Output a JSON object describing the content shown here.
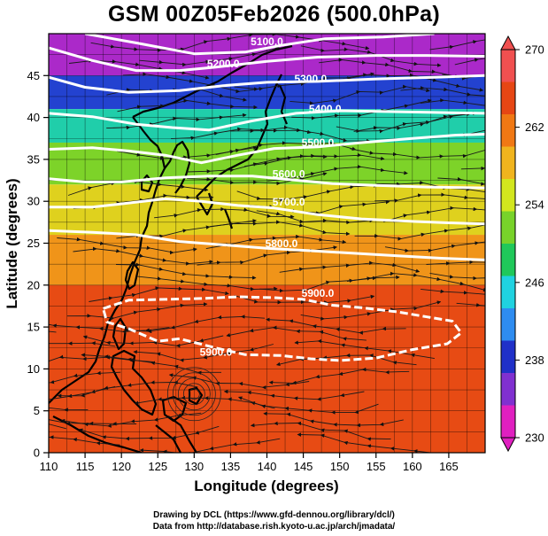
{
  "chart_data": {
    "type": "heatmap",
    "title": "GSM 00Z05Feb2026 (500.0hPa)",
    "xlabel": "Longitude (degrees)",
    "ylabel": "Latitude  (degrees)",
    "xlim": [
      110,
      170
    ],
    "ylim": [
      0,
      50
    ],
    "x_ticks": [
      "110",
      "115",
      "120",
      "125",
      "130",
      "135",
      "140",
      "145",
      "150",
      "155",
      "160",
      "165"
    ],
    "y_ticks": [
      "0",
      "5",
      "10",
      "15",
      "20",
      "25",
      "30",
      "35",
      "40",
      "45"
    ],
    "grid": true,
    "field": "temperature (K)",
    "field_bands": [
      {
        "lat_bottom": 45,
        "lat_top": 50,
        "value": 232
      },
      {
        "lat_bottom": 41,
        "lat_top": 45,
        "value": 238
      },
      {
        "lat_bottom": 37,
        "lat_top": 41,
        "value": 246
      },
      {
        "lat_bottom": 32,
        "lat_top": 37,
        "value": 252
      },
      {
        "lat_bottom": 26,
        "lat_top": 32,
        "value": 257
      },
      {
        "lat_bottom": 20,
        "lat_top": 26,
        "value": 261
      },
      {
        "lat_bottom": 0,
        "lat_top": 20,
        "value": 266
      }
    ],
    "colorbar": {
      "min": 230,
      "max": 270,
      "ticks": [
        "230",
        "238",
        "246",
        "254",
        "262",
        "270"
      ],
      "colors": [
        "#e020c0",
        "#8030d0",
        "#2030c8",
        "#2e8cf0",
        "#20d2e0",
        "#20c85a",
        "#78d22a",
        "#d2e61e",
        "#f0b41e",
        "#f07814",
        "#e64614",
        "#f05050"
      ]
    },
    "contours": {
      "variable": "geopotential height (m)",
      "series": [
        {
          "name": "5100.0",
          "label": "5100.0",
          "label_lon": 140,
          "label_lat": 48.6,
          "points": [
            [
              115.0,
              50.0
            ],
            [
              122.0,
              48.9
            ],
            [
              130.0,
              47.6
            ],
            [
              137.0,
              47.8
            ],
            [
              142.0,
              48.6
            ],
            [
              148.0,
              49.4
            ],
            [
              156.0,
              49.6
            ],
            [
              163.0,
              50.0
            ]
          ]
        },
        {
          "name": "5200.0",
          "label": "5200.0",
          "label_lon": 134,
          "label_lat": 46.0,
          "points": [
            [
              110.0,
              48.3
            ],
            [
              116.0,
              46.8
            ],
            [
              122.0,
              45.6
            ],
            [
              128.0,
              45.6
            ],
            [
              133.0,
              46.0
            ],
            [
              140.0,
              46.7
            ],
            [
              147.0,
              47.2
            ],
            [
              155.0,
              47.4
            ],
            [
              162.0,
              47.4
            ],
            [
              170.0,
              47.3
            ]
          ]
        },
        {
          "name": "5300.0",
          "label": "5300.0",
          "label_lon": 146,
          "label_lat": 44.2,
          "points": [
            [
              110.0,
              44.8
            ],
            [
              115.0,
              43.6
            ],
            [
              121.0,
              43.0
            ],
            [
              128.0,
              43.2
            ],
            [
              134.0,
              43.8
            ],
            [
              140.0,
              44.2
            ],
            [
              147.0,
              44.3
            ],
            [
              155.0,
              44.6
            ],
            [
              163.0,
              44.8
            ],
            [
              170.0,
              45.0
            ]
          ]
        },
        {
          "name": "5400.0",
          "label": "5400.0",
          "label_lon": 148,
          "label_lat": 40.6,
          "points": [
            [
              110.0,
              40.5
            ],
            [
              116.0,
              40.1
            ],
            [
              122.0,
              39.2
            ],
            [
              127.0,
              38.8
            ],
            [
              132.0,
              38.5
            ],
            [
              138.0,
              39.6
            ],
            [
              144.0,
              40.5
            ],
            [
              150.0,
              40.8
            ],
            [
              157.0,
              40.7
            ],
            [
              163.0,
              40.6
            ],
            [
              170.0,
              40.5
            ]
          ]
        },
        {
          "name": "5500.0",
          "label": "5500.0",
          "label_lon": 147,
          "label_lat": 36.6,
          "points": [
            [
              110.0,
              36.2
            ],
            [
              116.0,
              36.4
            ],
            [
              121.0,
              36.0
            ],
            [
              126.0,
              35.5
            ],
            [
              131.0,
              34.6
            ],
            [
              136.0,
              35.5
            ],
            [
              141.0,
              36.3
            ],
            [
              147.0,
              36.5
            ],
            [
              153.0,
              37.0
            ],
            [
              160.0,
              37.5
            ],
            [
              166.0,
              37.9
            ],
            [
              170.0,
              38.0
            ]
          ]
        },
        {
          "name": "5600.0",
          "label": "5600.0",
          "label_lon": 143,
          "label_lat": 32.8,
          "points": [
            [
              110.0,
              32.7
            ],
            [
              115.0,
              32.3
            ],
            [
              120.0,
              32.3
            ],
            [
              126.0,
              32.8
            ],
            [
              132.0,
              33.0
            ],
            [
              138.0,
              33.0
            ],
            [
              143.0,
              32.6
            ],
            [
              149.0,
              32.1
            ],
            [
              155.0,
              31.9
            ],
            [
              162.0,
              31.7
            ],
            [
              170.0,
              31.6
            ]
          ]
        },
        {
          "name": "5700.0",
          "label": "5700.0",
          "label_lon": 143,
          "label_lat": 29.5,
          "points": [
            [
              110.0,
              29.3
            ],
            [
              116.0,
              29.3
            ],
            [
              121.0,
              29.8
            ],
            [
              126.0,
              30.3
            ],
            [
              131.0,
              30.0
            ],
            [
              136.0,
              29.5
            ],
            [
              141.0,
              29.2
            ],
            [
              147.0,
              28.4
            ],
            [
              153.0,
              27.9
            ],
            [
              160.0,
              27.6
            ],
            [
              166.0,
              27.4
            ],
            [
              170.0,
              27.3
            ]
          ]
        },
        {
          "name": "5800.0",
          "label": "5800.0",
          "label_lon": 142,
          "label_lat": 24.5,
          "points": [
            [
              110.0,
              26.5
            ],
            [
              116.0,
              26.3
            ],
            [
              122.0,
              26.0
            ],
            [
              128.0,
              25.2
            ],
            [
              134.0,
              24.8
            ],
            [
              140.0,
              24.4
            ],
            [
              146.0,
              24.1
            ],
            [
              152.0,
              23.8
            ],
            [
              158.0,
              23.5
            ],
            [
              164.0,
              23.2
            ],
            [
              170.0,
              23.0
            ]
          ]
        },
        {
          "name": "5900.0",
          "label": "5900.0",
          "label_lon": 147,
          "label_lat": 18.6,
          "closed": true,
          "points": [
            [
              117.5,
              17.2
            ],
            [
              121.0,
              18.2
            ],
            [
              126.0,
              18.3
            ],
            [
              131.0,
              18.4
            ],
            [
              136.0,
              18.6
            ],
            [
              141.0,
              18.5
            ],
            [
              145.0,
              18.3
            ],
            [
              149.0,
              17.6
            ],
            [
              153.0,
              17.3
            ],
            [
              158.0,
              16.8
            ],
            [
              162.0,
              16.2
            ],
            [
              165.5,
              15.7
            ],
            [
              166.7,
              14.3
            ],
            [
              164.8,
              13.0
            ],
            [
              160.0,
              12.3
            ],
            [
              155.0,
              11.3
            ],
            [
              150.0,
              11.0
            ],
            [
              146.0,
              11.2
            ],
            [
              142.0,
              11.6
            ],
            [
              137.0,
              11.7
            ],
            [
              133.0,
              12.5
            ],
            [
              128.0,
              13.6
            ],
            [
              125.0,
              13.3
            ],
            [
              121.0,
              14.8
            ],
            [
              118.0,
              15.6
            ]
          ]
        }
      ]
    },
    "annotations": [
      "5900.0"
    ]
  },
  "credits": {
    "line1": "Drawing by DCL (https://www.gfd-dennou.org/library/dcl/)",
    "line2": "Data from http://database.rish.kyoto-u.ac.jp/arch/jmadata/"
  }
}
